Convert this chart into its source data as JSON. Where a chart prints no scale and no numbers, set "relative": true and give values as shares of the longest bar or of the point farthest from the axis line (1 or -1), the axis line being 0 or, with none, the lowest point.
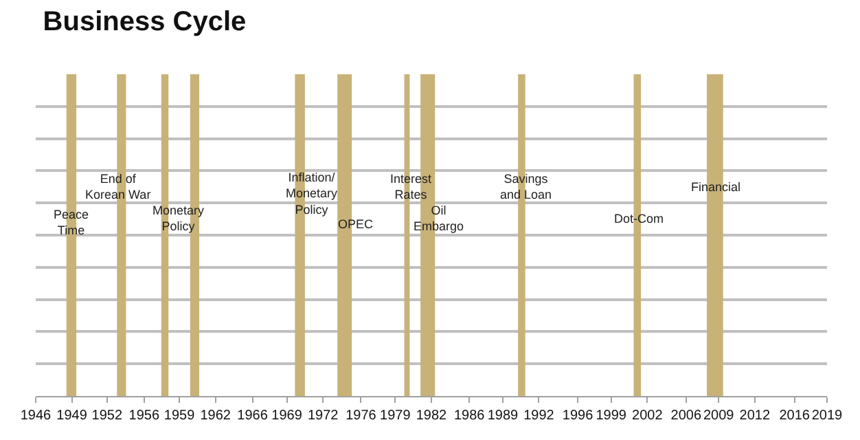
{
  "chart_data": {
    "type": "area",
    "title": "Business Cycle",
    "relative": true,
    "xlim": [
      "1946-01",
      "2019-01"
    ],
    "xticks": [
      {
        "value": "1946-01",
        "label": "1946"
      },
      {
        "value": "1949-05",
        "label": "1949"
      },
      {
        "value": "1952-08",
        "label": "1952"
      },
      {
        "value": "1956-01",
        "label": "1956"
      },
      {
        "value": "1959-04",
        "label": "1959"
      },
      {
        "value": "1962-08",
        "label": "1962"
      },
      {
        "value": "1966-01",
        "label": "1966"
      },
      {
        "value": "1969-03",
        "label": "1969"
      },
      {
        "value": "1972-07",
        "label": "1972"
      },
      {
        "value": "1976-01",
        "label": "1976"
      },
      {
        "value": "1979-03",
        "label": "1979"
      },
      {
        "value": "1982-07",
        "label": "1982"
      },
      {
        "value": "1986-01",
        "label": "1986"
      },
      {
        "value": "1989-02",
        "label": "1989"
      },
      {
        "value": "1992-06",
        "label": "1992"
      },
      {
        "value": "1996-01",
        "label": "1996"
      },
      {
        "value": "1999-02",
        "label": "1999"
      },
      {
        "value": "2002-06",
        "label": "2002"
      },
      {
        "value": "2006-01",
        "label": "2006"
      },
      {
        "value": "2009-01",
        "label": "2009"
      },
      {
        "value": "2012-05",
        "label": "2012"
      },
      {
        "value": "2016-01",
        "label": "2016"
      },
      {
        "value": "2019-01",
        "label": "2019"
      }
    ],
    "grid": "y",
    "series": [
      {
        "color": "#c8b277",
        "x": [
          "1946-01",
          "1948-11",
          "1949-10",
          "1953-07",
          "1954-05",
          "1957-08",
          "1958-04",
          "1960-04",
          "1961-02",
          "1969-12",
          "1970-11",
          "1973-11",
          "1975-03",
          "1980-01",
          "1980-07",
          "1981-07",
          "1982-11",
          "1990-07",
          "1991-03",
          "2001-03",
          "2001-11",
          "2007-12",
          "2009-06",
          "2019-01"
        ],
        "values": [
          0,
          1,
          0,
          1,
          0,
          1,
          0,
          1,
          0,
          1,
          0,
          1,
          0,
          1,
          0,
          1,
          0,
          1,
          0,
          1,
          0,
          1,
          0,
          0
        ]
      }
    ],
    "annotations": [
      "Peace\nTime",
      "End of\nKorean War",
      "Monetary\nPolicy",
      "Inflation/\nMonetary\nPolicy",
      "OPEC",
      "Interest\nRates",
      "Oil\nEmbargo",
      "Savings\nand Loan",
      "Dot-Com",
      "Financial"
    ]
  }
}
